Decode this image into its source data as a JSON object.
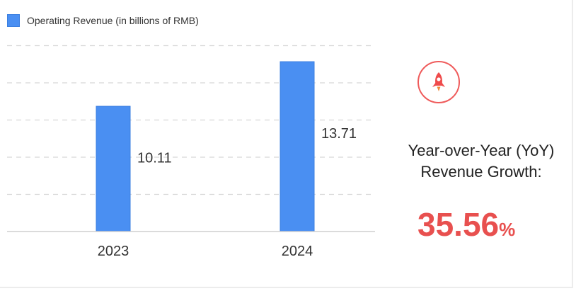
{
  "legend": {
    "label": "Operating Revenue (in billions of RMB)",
    "color": "#4a8ff2"
  },
  "chart_data": {
    "type": "bar",
    "categories": [
      "2023",
      "2024"
    ],
    "values": [
      10.11,
      13.71
    ],
    "title": "",
    "xlabel": "",
    "ylabel": "",
    "ylim": [
      0,
      16
    ],
    "grid": true,
    "legend_position": "top-left"
  },
  "growth": {
    "title_line1": "Year-over-Year (YoY)",
    "title_line2": "Revenue Growth:",
    "value": "35.56",
    "unit": "%",
    "color": "#e8504f",
    "icon": "rocket-icon"
  }
}
